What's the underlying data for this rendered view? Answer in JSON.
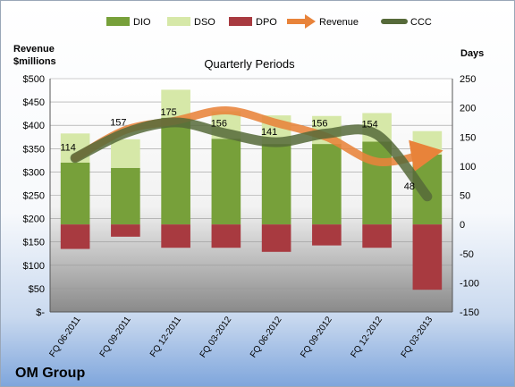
{
  "chart_data": {
    "type": "bar",
    "subtitle": "Quarterly Periods",
    "company": "OM Group",
    "left_axis_title": [
      "Revenue",
      "$millions"
    ],
    "right_axis_title": "Days",
    "categories": [
      "FQ 06-2011",
      "FQ 09-2011",
      "FQ 12-2011",
      "FQ 03-2012",
      "FQ 06-2012",
      "FQ 09-2012",
      "FQ 12-2012",
      "FQ 03-2013"
    ],
    "left_ticks": [
      "$-",
      "$50",
      "$100",
      "$150",
      "$200",
      "$250",
      "$300",
      "$350",
      "$400",
      "$450",
      "$500"
    ],
    "right_ticks": [
      "-150",
      "-100",
      "-50",
      "0",
      "50",
      "100",
      "150",
      "200",
      "250"
    ],
    "left_ylim": [
      0,
      500
    ],
    "right_ylim": [
      -150,
      250
    ],
    "series": [
      {
        "name": "DIO",
        "kind": "bar",
        "axis": "right",
        "color": "#77a03a",
        "values": [
          106,
          97,
          183,
          147,
          138,
          138,
          142,
          120
        ]
      },
      {
        "name": "DSO",
        "kind": "bar",
        "axis": "right",
        "color": "#d6e8a8",
        "values": [
          50,
          49,
          48,
          47,
          49,
          48,
          49,
          40
        ]
      },
      {
        "name": "DPO",
        "kind": "bar",
        "axis": "right",
        "color": "#a83a40",
        "values": [
          -42,
          -21,
          -40,
          -40,
          -47,
          -36,
          -40,
          -112
        ]
      },
      {
        "name": "Revenue",
        "kind": "line",
        "axis": "left",
        "color": "#e8833a",
        "values": [
          330,
          390,
          410,
          432,
          405,
          375,
          322,
          340
        ]
      },
      {
        "name": "CCC",
        "kind": "line",
        "axis": "right",
        "color": "#566a3a",
        "values": [
          114,
          157,
          175,
          156,
          141,
          156,
          154,
          48
        ]
      }
    ],
    "ccc_labels": [
      "114",
      "157",
      "175",
      "156",
      "141",
      "156",
      "154",
      "48"
    ],
    "legend_position": "top"
  }
}
